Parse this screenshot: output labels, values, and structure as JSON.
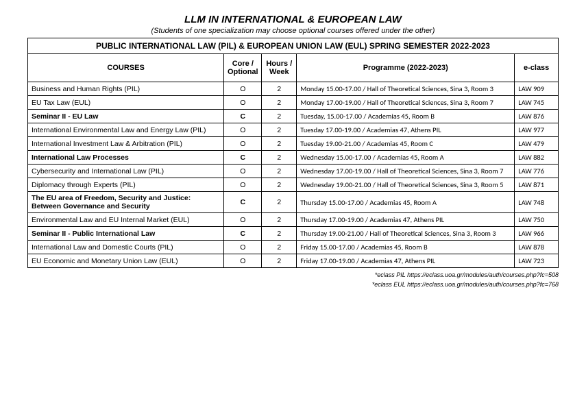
{
  "header": {
    "title": "LLM IN INTERNATIONAL & EUROPEAN LAW",
    "subtitle": "(Students of one specialization may choose optional courses offered under the other)",
    "table_title": "PUBLIC INTERNATIONAL LAW (PIL) & EUROPEAN UNION LAW (EUL) SPRING SEMESTER 2022-2023"
  },
  "columns": {
    "course": "COURSES",
    "core": "Core / Optional",
    "hours": "Hours / Week",
    "programme": "Programme (2022-2023)",
    "eclass": "e-class"
  },
  "rows": [
    {
      "course": "Business and Human Rights (PIL)",
      "core": "O",
      "hours": "2",
      "programme": "Monday 15.00-17.00 / Hall of Theoretical Sciences, Sina 3, Room 3",
      "eclass": "LAW 909",
      "bold": false
    },
    {
      "course": "EU Tax Law (EUL)",
      "core": "O",
      "hours": "2",
      "programme": "Monday 17.00-19.00 / Hall of Theoretical Sciences, Sina 3, Room 7",
      "eclass": "LAW 745",
      "bold": false
    },
    {
      "course": "Seminar II - EU Law",
      "core": "C",
      "hours": "2",
      "programme": "Tuesday, 15.00-17.00 / Academias 45, Room B",
      "eclass": "LAW 876",
      "bold": true
    },
    {
      "course": "International Environmental Law and Energy Law (PIL)",
      "core": "O",
      "hours": "2",
      "programme": "Tuesday 17.00-19.00 / Academias 47, Athens PIL",
      "eclass": "LAW 977",
      "bold": false
    },
    {
      "course": "International Investment Law & Arbitration (PIL)",
      "core": "O",
      "hours": "2",
      "programme": "Tuesday 19.00-21.00 / Academias 45, Room C",
      "eclass": "LAW 479",
      "bold": false
    },
    {
      "course": "International Law Processes",
      "core": "C",
      "hours": "2",
      "programme": "Wednesday 15.00-17.00 / Academias 45, Room A",
      "eclass": "LAW 882",
      "bold": true
    },
    {
      "course": "Cybersecurity and International Law (PIL)",
      "core": "O",
      "hours": "2",
      "programme": "Wednesday 17.00-19.00 / Hall of Theoretical Sciences, Sina 3, Room 7",
      "eclass": "LAW 776",
      "bold": false
    },
    {
      "course": "Diplomacy through Experts (PIL)",
      "core": "O",
      "hours": "2",
      "programme": "Wednesday 19.00-21.00 /  Hall of Theoretical Sciences, Sina 3, Room 5",
      "eclass": "LAW 871",
      "bold": false
    },
    {
      "course": "The EU area of Freedom, Security and Justice: Between Governance and Security",
      "core": "C",
      "hours": "2",
      "programme": "Thursday 15.00-17.00 / Academias 45, Room A",
      "eclass": "LAW 748",
      "bold": true
    },
    {
      "course": "Environmental Law and EU Internal Market (EUL)",
      "core": "O",
      "hours": "2",
      "programme": "Thursday 17.00-19.00 / Academias 47, Athens PIL",
      "eclass": "LAW 750",
      "bold": false
    },
    {
      "course": "Seminar II - Public International Law",
      "core": "C",
      "hours": "2",
      "programme": "Thursday 19.00-21.00 / Hall of Theoretical Sciences, Sina 3, Room 3",
      "eclass": "LAW 966",
      "bold": true
    },
    {
      "course": "International Law and Domestic Courts (PIL)",
      "core": "O",
      "hours": "2",
      "programme": "Friday 15.00-17.00 / Academias 45, Room B",
      "eclass": "LAW 878",
      "bold": false
    },
    {
      "course": "EU Economic and Monetary Union Law (EUL)",
      "core": "O",
      "hours": "2",
      "programme": "Friday 17.00-19.00 / Academias 47, Athens PIL",
      "eclass": "LAW 723",
      "bold": false
    }
  ],
  "footnotes": {
    "line1": "*eclass PIL https://eclass.uoa.gr/modules/auth/courses.php?fc=508",
    "line2": "*eclass EUL https://eclass.uoa.gr/modules/auth/courses.php?fc=768"
  }
}
